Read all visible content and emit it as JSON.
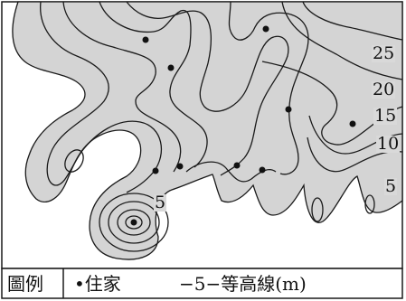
{
  "map": {
    "fill_color": "#d4d4d4",
    "line_color": "#1a1a1a",
    "contour_labels": [
      "25",
      "20",
      "15",
      "10",
      "5",
      "5"
    ],
    "houses": 10
  },
  "legend": {
    "title": "圖例",
    "house_label": "•住家",
    "contour_label": "−5−等高線(m)"
  }
}
